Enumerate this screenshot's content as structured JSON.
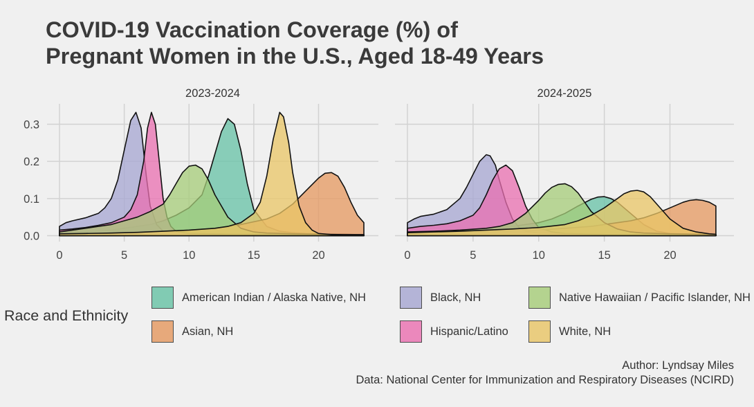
{
  "title_line1": "COVID-19 Vaccination Coverage (%) of",
  "title_line2": "Pregnant Women in the U.S., Aged 18-49 Years",
  "legend_title": "Race and Ethnicity",
  "caption_line1": "Author: Lyndsay Miles",
  "caption_line2": "Data: National Center for Immunization and Respiratory Diseases (NCIRD)",
  "chart_data": {
    "type": "area",
    "subtype": "density",
    "x_ticks": [
      0,
      5,
      10,
      15,
      20
    ],
    "y_ticks": [
      0.0,
      0.1,
      0.2,
      0.3
    ],
    "y_tick_labels": [
      "0.0",
      "0.1",
      "0.2",
      "0.3"
    ],
    "xlim": [
      0,
      24
    ],
    "ylim": [
      0,
      0.34
    ],
    "grid": true,
    "legend_position": "bottom",
    "panels": [
      {
        "label": "2023-2024",
        "series": [
          {
            "name": "American Indian / Alaska Native, NH",
            "color": "#66c2a5",
            "x": [
              0,
              1,
              2,
              3,
              4,
              5,
              6,
              7,
              8,
              9,
              10,
              11,
              11.5,
              12,
              12.5,
              13,
              13.5,
              14,
              14.5,
              15,
              16,
              17,
              18,
              19,
              20,
              21,
              22,
              23,
              23.5
            ],
            "y": [
              0.005,
              0.008,
              0.01,
              0.012,
              0.015,
              0.02,
              0.025,
              0.03,
              0.04,
              0.055,
              0.075,
              0.11,
              0.16,
              0.22,
              0.28,
              0.315,
              0.3,
              0.23,
              0.14,
              0.07,
              0.025,
              0.012,
              0.008,
              0.006,
              0.005,
              0.004,
              0.004,
              0.003,
              0.003
            ]
          },
          {
            "name": "Asian, NH",
            "color": "#e5985f",
            "x": [
              0,
              2,
              4,
              6,
              8,
              10,
              12,
              14,
              16,
              17,
              18,
              19,
              20,
              20.5,
              21,
              21.5,
              22,
              22.5,
              23,
              23.5
            ],
            "y": [
              0.005,
              0.006,
              0.008,
              0.01,
              0.012,
              0.015,
              0.02,
              0.03,
              0.045,
              0.06,
              0.085,
              0.12,
              0.155,
              0.168,
              0.17,
              0.16,
              0.13,
              0.09,
              0.055,
              0.035
            ]
          },
          {
            "name": "Black, NH",
            "color": "#a6a6d1",
            "x": [
              0,
              0.5,
              1,
              2,
              3,
              3.5,
              4,
              4.5,
              5,
              5.5,
              5.9,
              6.3,
              6.7,
              7,
              7.5,
              8,
              9,
              10,
              12,
              14,
              16,
              18,
              20,
              22,
              23.5
            ],
            "y": [
              0.025,
              0.035,
              0.04,
              0.048,
              0.06,
              0.075,
              0.1,
              0.15,
              0.23,
              0.31,
              0.332,
              0.29,
              0.16,
              0.08,
              0.03,
              0.012,
              0.008,
              0.006,
              0.005,
              0.004,
              0.004,
              0.003,
              0.003,
              0.002,
              0.002
            ]
          },
          {
            "name": "Hispanic/Latino",
            "color": "#ea6fb0",
            "x": [
              0,
              1,
              2,
              3,
              4,
              5,
              5.5,
              6,
              6.5,
              6.8,
              7.1,
              7.4,
              7.7,
              8,
              8.3,
              8.6,
              9,
              10,
              12,
              14,
              16,
              18,
              20,
              22,
              23.5
            ],
            "y": [
              0.015,
              0.018,
              0.022,
              0.028,
              0.035,
              0.05,
              0.07,
              0.11,
              0.2,
              0.29,
              0.332,
              0.3,
              0.2,
              0.1,
              0.05,
              0.025,
              0.012,
              0.006,
              0.004,
              0.004,
              0.003,
              0.003,
              0.003,
              0.002,
              0.002
            ]
          },
          {
            "name": "Native Hawaiian / Pacific Islander, NH",
            "color": "#a6cc78",
            "x": [
              0,
              1,
              2,
              3,
              4,
              5,
              6,
              7,
              8,
              8.5,
              9,
              9.5,
              10,
              10.5,
              11,
              11.5,
              12,
              13,
              14,
              15,
              16,
              18,
              20,
              22,
              23.5
            ],
            "y": [
              0.01,
              0.015,
              0.02,
              0.025,
              0.03,
              0.04,
              0.05,
              0.065,
              0.085,
              0.11,
              0.14,
              0.17,
              0.187,
              0.19,
              0.18,
              0.15,
              0.11,
              0.05,
              0.02,
              0.01,
              0.007,
              0.005,
              0.004,
              0.003,
              0.003
            ]
          },
          {
            "name": "White, NH",
            "color": "#e9c565",
            "x": [
              0,
              2,
              4,
              6,
              8,
              10,
              12,
              13,
              14,
              15,
              15.5,
              16,
              16.5,
              17,
              17.3,
              17.7,
              18,
              18.5,
              19,
              19.5,
              20,
              21,
              22,
              23.5
            ],
            "y": [
              0.005,
              0.006,
              0.007,
              0.009,
              0.012,
              0.015,
              0.02,
              0.025,
              0.035,
              0.06,
              0.09,
              0.16,
              0.26,
              0.332,
              0.32,
              0.25,
              0.17,
              0.08,
              0.035,
              0.015,
              0.006,
              0.003,
              0.002,
              0.002
            ]
          }
        ]
      },
      {
        "label": "2024-2025",
        "series": [
          {
            "name": "American Indian / Alaska Native, NH",
            "color": "#66c2a5",
            "x": [
              0,
              2,
              4,
              6,
              8,
              10,
              11,
              12,
              13,
              14,
              14.5,
              15,
              15.5,
              16,
              17,
              18,
              19,
              20,
              22,
              23.5
            ],
            "y": [
              0.01,
              0.012,
              0.015,
              0.02,
              0.025,
              0.035,
              0.045,
              0.06,
              0.08,
              0.098,
              0.104,
              0.105,
              0.1,
              0.09,
              0.06,
              0.03,
              0.012,
              0.006,
              0.004,
              0.003
            ]
          },
          {
            "name": "Asian, NH",
            "color": "#e5985f",
            "x": [
              0,
              2,
              4,
              6,
              8,
              10,
              12,
              14,
              16,
              17,
              18,
              19,
              20,
              21,
              21.5,
              22,
              22.5,
              23,
              23.5
            ],
            "y": [
              0.005,
              0.006,
              0.008,
              0.01,
              0.012,
              0.015,
              0.02,
              0.025,
              0.035,
              0.04,
              0.048,
              0.06,
              0.075,
              0.09,
              0.095,
              0.097,
              0.095,
              0.09,
              0.08
            ]
          },
          {
            "name": "Black, NH",
            "color": "#a6a6d1",
            "x": [
              0,
              0.5,
              1,
              2,
              3,
              4,
              4.5,
              5,
              5.5,
              6,
              6.3,
              6.7,
              7,
              7.5,
              8,
              8.5,
              9,
              10,
              12,
              14,
              16,
              18,
              20,
              22,
              23.5
            ],
            "y": [
              0.035,
              0.045,
              0.052,
              0.058,
              0.07,
              0.1,
              0.13,
              0.165,
              0.2,
              0.218,
              0.215,
              0.19,
              0.15,
              0.09,
              0.045,
              0.022,
              0.012,
              0.007,
              0.005,
              0.004,
              0.003,
              0.003,
              0.002,
              0.002,
              0.002
            ]
          },
          {
            "name": "Hispanic/Latino",
            "color": "#ea6fb0",
            "x": [
              0,
              1,
              2,
              3,
              4,
              5,
              5.5,
              6,
              6.5,
              7,
              7.5,
              8,
              8.5,
              9,
              9.5,
              10,
              11,
              12,
              14,
              16,
              18,
              20,
              22,
              23.5
            ],
            "y": [
              0.02,
              0.025,
              0.028,
              0.032,
              0.04,
              0.055,
              0.075,
              0.11,
              0.15,
              0.18,
              0.19,
              0.175,
              0.13,
              0.08,
              0.045,
              0.022,
              0.01,
              0.006,
              0.004,
              0.003,
              0.003,
              0.002,
              0.002,
              0.002
            ]
          },
          {
            "name": "Native Hawaiian / Pacific Islander, NH",
            "color": "#a6cc78",
            "x": [
              0,
              2,
              4,
              6,
              7,
              8,
              9,
              10,
              10.5,
              11,
              11.5,
              12,
              12.5,
              13,
              13.5,
              14,
              15,
              16,
              17,
              18,
              20,
              22,
              23.5
            ],
            "y": [
              0.01,
              0.012,
              0.015,
              0.02,
              0.025,
              0.035,
              0.06,
              0.095,
              0.115,
              0.13,
              0.138,
              0.14,
              0.132,
              0.115,
              0.09,
              0.065,
              0.035,
              0.018,
              0.01,
              0.007,
              0.005,
              0.004,
              0.003
            ]
          },
          {
            "name": "White, NH",
            "color": "#e9c565",
            "x": [
              0,
              2,
              4,
              6,
              8,
              10,
              12,
              13,
              14,
              15,
              16,
              16.5,
              17,
              17.5,
              18,
              18.5,
              19,
              20,
              21,
              22,
              23,
              23.5
            ],
            "y": [
              0.008,
              0.01,
              0.012,
              0.015,
              0.018,
              0.022,
              0.03,
              0.04,
              0.055,
              0.075,
              0.1,
              0.113,
              0.12,
              0.122,
              0.118,
              0.105,
              0.085,
              0.045,
              0.02,
              0.01,
              0.005,
              0.004
            ]
          }
        ]
      }
    ],
    "legend_order": [
      "American Indian / Alaska Native, NH",
      "Black, NH",
      "Native Hawaiian / Pacific Islander, NH",
      "Asian, NH",
      "Hispanic/Latino",
      "White, NH"
    ]
  }
}
